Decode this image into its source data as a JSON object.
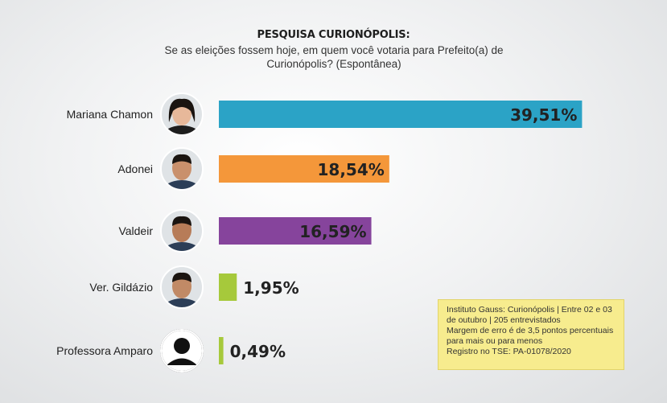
{
  "header": {
    "title": "PESQUISA CURIONÓPOLIS:",
    "subtitle_line1": "Se as eleições fossem hoje, em quem você votaria para Prefeito(a) de",
    "subtitle_line2": "Curionópolis? (Espontânea)"
  },
  "chart_data": {
    "type": "bar",
    "orientation": "horizontal",
    "categories": [
      "Mariana Chamon",
      "Adonei",
      "Valdeir",
      "Ver. Gildázio",
      "Professora Amparo"
    ],
    "values": [
      39.51,
      18.54,
      16.59,
      1.95,
      0.49
    ],
    "value_labels": [
      "39,51%",
      "18,54%",
      "16,59%",
      "1,95%",
      "0,49%"
    ],
    "colors": [
      "#2ba3c6",
      "#f4973a",
      "#86449c",
      "#a6c93b",
      "#a6c93b"
    ],
    "title": "PESQUISA CURIONÓPOLIS:",
    "xlabel": "",
    "ylabel": "",
    "xlim": [
      0,
      40
    ],
    "grid": false,
    "legend": false
  },
  "note": {
    "lines": [
      "Instituto Gauss: Curionópolis | Entre 02 e 03",
      "de outubro | 205 entrevistados",
      "Margem de erro é de 3,5 pontos percentuais",
      "para mais ou para menos",
      "Registro no TSE: PA-01078/2020"
    ]
  }
}
